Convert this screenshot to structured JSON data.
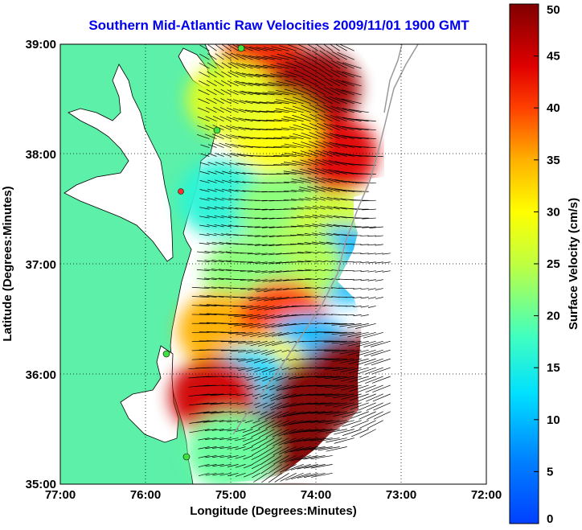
{
  "chart_data": {
    "type": "heatmap",
    "title": "Southern Mid-Atlantic Raw Velocities 2009/11/01 1900 GMT",
    "xlabel": "Longitude (Degrees:Minutes)",
    "ylabel": "Latitude (Degrees:Minutes)",
    "x_ticks": [
      "77:00",
      "76:00",
      "75:00",
      "74:00",
      "73:00",
      "72:00"
    ],
    "y_ticks": [
      "39:00",
      "38:00",
      "37:00",
      "36:00",
      "35:00"
    ],
    "xlim": [
      -77,
      -72
    ],
    "ylim": [
      35,
      39
    ],
    "grid": true,
    "colorbar": {
      "label": "Surface Velocity (cm/s)",
      "range": [
        0,
        50
      ],
      "ticks": [
        "0",
        "5",
        "10",
        "15",
        "20",
        "25",
        "30",
        "35",
        "40",
        "45",
        "50"
      ]
    },
    "colors": {
      "land": "#5cf0a8",
      "water": "#ffffff",
      "title": "#0000ee"
    },
    "velocity_field": [
      {
        "lon": -74.6,
        "lat": 38.8,
        "speed": 42
      },
      {
        "lon": -74.0,
        "lat": 38.6,
        "speed": 48
      },
      {
        "lon": -73.8,
        "lat": 38.0,
        "speed": 44
      },
      {
        "lon": -74.5,
        "lat": 38.2,
        "speed": 30
      },
      {
        "lon": -75.0,
        "lat": 38.5,
        "speed": 28
      },
      {
        "lon": -75.1,
        "lat": 37.6,
        "speed": 16
      },
      {
        "lon": -74.4,
        "lat": 37.5,
        "speed": 22
      },
      {
        "lon": -73.8,
        "lat": 37.3,
        "speed": 26
      },
      {
        "lon": -73.7,
        "lat": 37.0,
        "speed": 10
      },
      {
        "lon": -74.2,
        "lat": 37.0,
        "speed": 24
      },
      {
        "lon": -74.8,
        "lat": 36.9,
        "speed": 22
      },
      {
        "lon": -75.1,
        "lat": 36.4,
        "speed": 35
      },
      {
        "lon": -74.4,
        "lat": 36.5,
        "speed": 40
      },
      {
        "lon": -74.1,
        "lat": 36.2,
        "speed": 10
      },
      {
        "lon": -74.6,
        "lat": 36.0,
        "speed": 30
      },
      {
        "lon": -74.8,
        "lat": 35.9,
        "speed": 12
      },
      {
        "lon": -75.2,
        "lat": 35.8,
        "speed": 45
      },
      {
        "lon": -74.0,
        "lat": 35.8,
        "speed": 50
      },
      {
        "lon": -73.6,
        "lat": 36.0,
        "speed": 50
      },
      {
        "lon": -74.3,
        "lat": 35.4,
        "speed": 50
      },
      {
        "lon": -75.0,
        "lat": 35.3,
        "speed": 20
      }
    ]
  }
}
